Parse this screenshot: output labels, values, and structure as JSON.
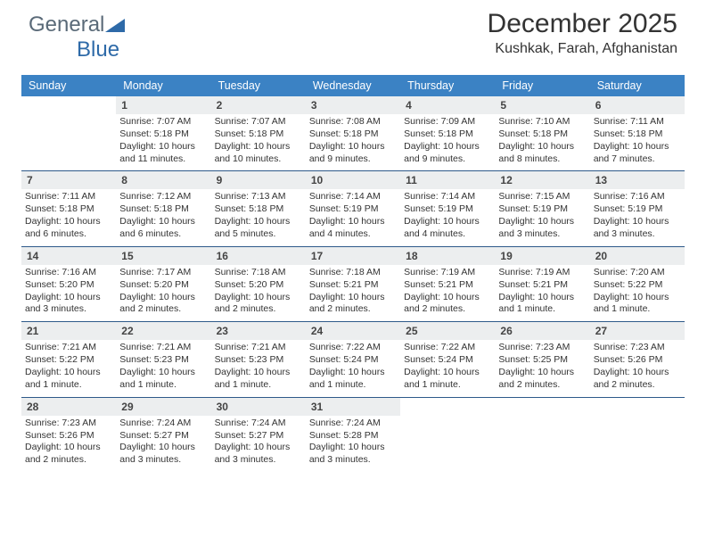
{
  "brand": {
    "part1": "General",
    "part2": "Blue",
    "text_color": "#5a6a78",
    "accent_color": "#2e6aa8"
  },
  "title": {
    "month": "December 2025",
    "location": "Kushkak, Farah, Afghanistan"
  },
  "style": {
    "header_bg": "#3b82c4",
    "header_text": "#ffffff",
    "row_separator": "#2e5a8a",
    "daynum_bg": "#eceeef",
    "page_bg": "#ffffff",
    "body_text": "#222222",
    "font_family": "Arial",
    "dow_fontsize": 12.5,
    "daynum_fontsize": 12,
    "detail_fontsize": 10.5,
    "title_fontsize": 30,
    "location_fontsize": 16
  },
  "days_of_week": [
    "Sunday",
    "Monday",
    "Tuesday",
    "Wednesday",
    "Thursday",
    "Friday",
    "Saturday"
  ],
  "weeks": [
    [
      {
        "blank": true
      },
      {
        "num": "1",
        "sunrise": "7:07 AM",
        "sunset": "5:18 PM",
        "daylight": "10 hours and 11 minutes."
      },
      {
        "num": "2",
        "sunrise": "7:07 AM",
        "sunset": "5:18 PM",
        "daylight": "10 hours and 10 minutes."
      },
      {
        "num": "3",
        "sunrise": "7:08 AM",
        "sunset": "5:18 PM",
        "daylight": "10 hours and 9 minutes."
      },
      {
        "num": "4",
        "sunrise": "7:09 AM",
        "sunset": "5:18 PM",
        "daylight": "10 hours and 9 minutes."
      },
      {
        "num": "5",
        "sunrise": "7:10 AM",
        "sunset": "5:18 PM",
        "daylight": "10 hours and 8 minutes."
      },
      {
        "num": "6",
        "sunrise": "7:11 AM",
        "sunset": "5:18 PM",
        "daylight": "10 hours and 7 minutes."
      }
    ],
    [
      {
        "num": "7",
        "sunrise": "7:11 AM",
        "sunset": "5:18 PM",
        "daylight": "10 hours and 6 minutes."
      },
      {
        "num": "8",
        "sunrise": "7:12 AM",
        "sunset": "5:18 PM",
        "daylight": "10 hours and 6 minutes."
      },
      {
        "num": "9",
        "sunrise": "7:13 AM",
        "sunset": "5:18 PM",
        "daylight": "10 hours and 5 minutes."
      },
      {
        "num": "10",
        "sunrise": "7:14 AM",
        "sunset": "5:19 PM",
        "daylight": "10 hours and 4 minutes."
      },
      {
        "num": "11",
        "sunrise": "7:14 AM",
        "sunset": "5:19 PM",
        "daylight": "10 hours and 4 minutes."
      },
      {
        "num": "12",
        "sunrise": "7:15 AM",
        "sunset": "5:19 PM",
        "daylight": "10 hours and 3 minutes."
      },
      {
        "num": "13",
        "sunrise": "7:16 AM",
        "sunset": "5:19 PM",
        "daylight": "10 hours and 3 minutes."
      }
    ],
    [
      {
        "num": "14",
        "sunrise": "7:16 AM",
        "sunset": "5:20 PM",
        "daylight": "10 hours and 3 minutes."
      },
      {
        "num": "15",
        "sunrise": "7:17 AM",
        "sunset": "5:20 PM",
        "daylight": "10 hours and 2 minutes."
      },
      {
        "num": "16",
        "sunrise": "7:18 AM",
        "sunset": "5:20 PM",
        "daylight": "10 hours and 2 minutes."
      },
      {
        "num": "17",
        "sunrise": "7:18 AM",
        "sunset": "5:21 PM",
        "daylight": "10 hours and 2 minutes."
      },
      {
        "num": "18",
        "sunrise": "7:19 AM",
        "sunset": "5:21 PM",
        "daylight": "10 hours and 2 minutes."
      },
      {
        "num": "19",
        "sunrise": "7:19 AM",
        "sunset": "5:21 PM",
        "daylight": "10 hours and 1 minute."
      },
      {
        "num": "20",
        "sunrise": "7:20 AM",
        "sunset": "5:22 PM",
        "daylight": "10 hours and 1 minute."
      }
    ],
    [
      {
        "num": "21",
        "sunrise": "7:21 AM",
        "sunset": "5:22 PM",
        "daylight": "10 hours and 1 minute."
      },
      {
        "num": "22",
        "sunrise": "7:21 AM",
        "sunset": "5:23 PM",
        "daylight": "10 hours and 1 minute."
      },
      {
        "num": "23",
        "sunrise": "7:21 AM",
        "sunset": "5:23 PM",
        "daylight": "10 hours and 1 minute."
      },
      {
        "num": "24",
        "sunrise": "7:22 AM",
        "sunset": "5:24 PM",
        "daylight": "10 hours and 1 minute."
      },
      {
        "num": "25",
        "sunrise": "7:22 AM",
        "sunset": "5:24 PM",
        "daylight": "10 hours and 1 minute."
      },
      {
        "num": "26",
        "sunrise": "7:23 AM",
        "sunset": "5:25 PM",
        "daylight": "10 hours and 2 minutes."
      },
      {
        "num": "27",
        "sunrise": "7:23 AM",
        "sunset": "5:26 PM",
        "daylight": "10 hours and 2 minutes."
      }
    ],
    [
      {
        "num": "28",
        "sunrise": "7:23 AM",
        "sunset": "5:26 PM",
        "daylight": "10 hours and 2 minutes."
      },
      {
        "num": "29",
        "sunrise": "7:24 AM",
        "sunset": "5:27 PM",
        "daylight": "10 hours and 3 minutes."
      },
      {
        "num": "30",
        "sunrise": "7:24 AM",
        "sunset": "5:27 PM",
        "daylight": "10 hours and 3 minutes."
      },
      {
        "num": "31",
        "sunrise": "7:24 AM",
        "sunset": "5:28 PM",
        "daylight": "10 hours and 3 minutes."
      },
      {
        "blank": true
      },
      {
        "blank": true
      },
      {
        "blank": true
      }
    ]
  ],
  "labels": {
    "sunrise": "Sunrise:",
    "sunset": "Sunset:",
    "daylight": "Daylight:"
  }
}
